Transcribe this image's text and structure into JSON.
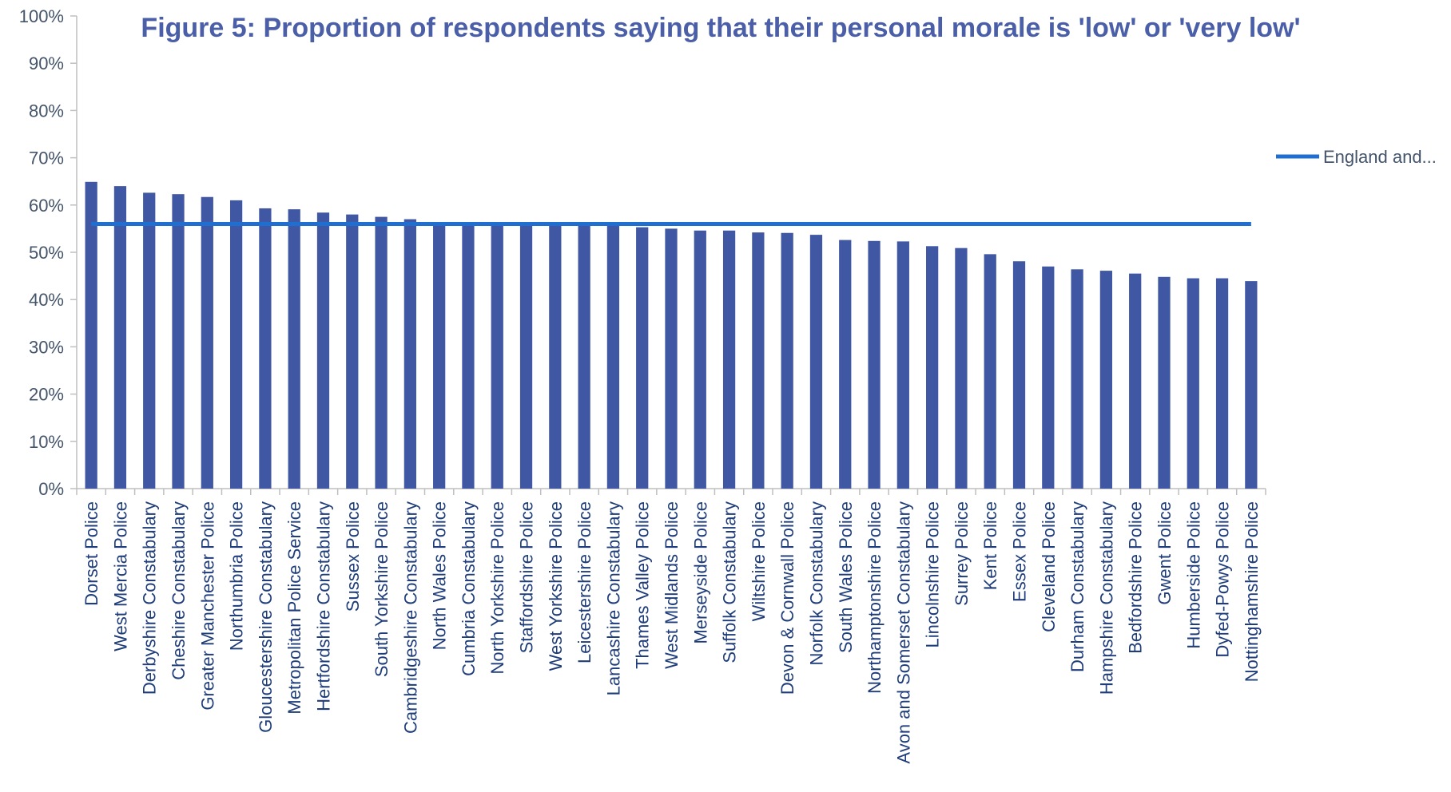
{
  "chart_data": {
    "type": "bar",
    "title": "Figure 5: Proportion of respondents saying that their personal morale is 'low' or 'very low'",
    "xlabel": "",
    "ylabel": "",
    "ylim": [
      0,
      100
    ],
    "yticks": [
      "0%",
      "10%",
      "20%",
      "30%",
      "40%",
      "50%",
      "60%",
      "70%",
      "80%",
      "90%",
      "100%"
    ],
    "grid": false,
    "legend_position": "right",
    "colors": {
      "bar": "#4057a3",
      "line": "#1f6fd1"
    },
    "categories": [
      "Dorset Police",
      "West Mercia Police",
      "Derbyshire Constabulary",
      "Cheshire Constabulary",
      "Greater Manchester Police",
      "Northumbria Police",
      "Gloucestershire Constabulary",
      "Metropolitan Police Service",
      "Hertfordshire Constabulary",
      "Sussex Police",
      "South Yorkshire Police",
      "Cambridgeshire Constabulary",
      "North Wales Police",
      "Cumbria Constabulary",
      "North Yorkshire Police",
      "Staffordshire Police",
      "West Yorkshire Police",
      "Leicestershire Police",
      "Lancashire Constabulary",
      "Thames Valley Police",
      "West Midlands Police",
      "Merseyside Police",
      "Suffolk Constabulary",
      "Wiltshire Police",
      "Devon & Cornwall Police",
      "Norfolk Constabulary",
      "South Wales Police",
      "Northamptonshire Police",
      "Avon and Somerset Constabulary",
      "Lincolnshire Police",
      "Surrey Police",
      "Kent Police",
      "Essex Police",
      "Cleveland Police",
      "Durham Constabulary",
      "Hampshire Constabulary",
      "Bedfordshire Police",
      "Gwent Police",
      "Humberside Police",
      "Dyfed-Powys Police",
      "Nottinghamshire Police"
    ],
    "series": [
      {
        "type": "bar",
        "values": [
          64.9,
          64.0,
          62.6,
          62.3,
          61.7,
          61.0,
          59.3,
          59.1,
          58.4,
          58.0,
          57.5,
          57.0,
          56.3,
          56.2,
          56.1,
          56.0,
          56.0,
          55.9,
          55.9,
          55.3,
          55.0,
          54.6,
          54.6,
          54.2,
          54.1,
          53.7,
          52.6,
          52.4,
          52.3,
          51.3,
          50.9,
          49.6,
          48.1,
          47.0,
          46.4,
          46.1,
          45.5,
          44.8,
          44.5,
          44.5,
          43.9
        ]
      },
      {
        "type": "line",
        "name": "England and...",
        "value": 56.0
      }
    ]
  }
}
